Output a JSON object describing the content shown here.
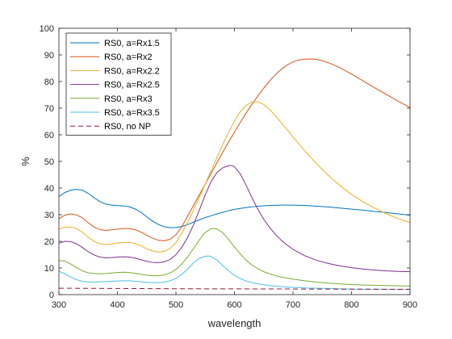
{
  "chart_data": {
    "type": "line",
    "xlabel": "wavelength",
    "ylabel": "%",
    "xlim": [
      300,
      900
    ],
    "ylim": [
      0,
      100
    ],
    "x_ticks": [
      300,
      400,
      500,
      600,
      700,
      800,
      900
    ],
    "y_ticks": [
      0,
      10,
      20,
      30,
      40,
      50,
      60,
      70,
      80,
      90,
      100
    ],
    "grid": false,
    "legend_position": "top-left",
    "series": [
      {
        "name": "RS0, a=Rx1.5",
        "color": "#0072BD",
        "dash": "solid",
        "x": [
          300,
          310,
          320,
          330,
          340,
          350,
          360,
          370,
          380,
          390,
          400,
          410,
          420,
          430,
          440,
          450,
          460,
          470,
          480,
          490,
          500,
          510,
          520,
          530,
          540,
          550,
          560,
          570,
          580,
          590,
          600,
          620,
          640,
          660,
          680,
          700,
          720,
          740,
          760,
          780,
          800,
          820,
          840,
          860,
          880,
          900
        ],
        "values": [
          36.8,
          38.3,
          39.2,
          39.5,
          39.2,
          38.0,
          36.4,
          34.9,
          34.0,
          33.6,
          33.4,
          33.3,
          33.0,
          32.2,
          30.9,
          29.2,
          27.6,
          26.3,
          25.5,
          25.1,
          25.2,
          25.6,
          26.3,
          27.2,
          28.1,
          28.9,
          29.6,
          30.3,
          30.9,
          31.5,
          32.0,
          32.7,
          33.2,
          33.5,
          33.6,
          33.6,
          33.5,
          33.2,
          32.9,
          32.5,
          32.1,
          31.7,
          31.2,
          30.8,
          30.3,
          29.8
        ]
      },
      {
        "name": "RS0, a=Rx2",
        "color": "#D95319",
        "dash": "solid",
        "x": [
          300,
          310,
          320,
          330,
          340,
          350,
          360,
          370,
          380,
          390,
          400,
          410,
          420,
          430,
          440,
          450,
          460,
          470,
          480,
          490,
          500,
          510,
          520,
          530,
          540,
          550,
          560,
          570,
          580,
          590,
          600,
          610,
          620,
          630,
          640,
          650,
          660,
          670,
          680,
          690,
          700,
          710,
          720,
          730,
          740,
          750,
          760,
          770,
          780,
          790,
          800,
          820,
          840,
          860,
          880,
          900
        ],
        "values": [
          28.5,
          29.8,
          30.3,
          29.9,
          28.8,
          27.0,
          25.4,
          24.4,
          24.1,
          24.3,
          24.6,
          24.8,
          24.8,
          24.4,
          23.5,
          22.3,
          21.2,
          20.4,
          20.2,
          20.8,
          22.5,
          25.5,
          29.5,
          33.5,
          37.5,
          41.5,
          45.5,
          49.5,
          53.5,
          57.3,
          61.0,
          64.7,
          68.2,
          71.5,
          74.6,
          77.5,
          80.2,
          82.6,
          84.6,
          86.2,
          87.4,
          88.1,
          88.4,
          88.5,
          88.3,
          87.8,
          87.1,
          86.2,
          85.2,
          84.0,
          82.8,
          80.2,
          77.6,
          75.1,
          72.6,
          70.2
        ]
      },
      {
        "name": "RS0, a=Rx2.2",
        "color": "#EDB120",
        "dash": "solid",
        "x": [
          300,
          310,
          320,
          330,
          340,
          350,
          360,
          370,
          380,
          390,
          400,
          410,
          420,
          430,
          440,
          450,
          460,
          470,
          480,
          490,
          500,
          510,
          520,
          530,
          540,
          550,
          560,
          570,
          580,
          590,
          600,
          610,
          620,
          630,
          640,
          650,
          660,
          670,
          680,
          690,
          700,
          720,
          740,
          760,
          780,
          800,
          820,
          840,
          860,
          880,
          900
        ],
        "values": [
          24.6,
          25.3,
          25.4,
          24.8,
          23.4,
          21.6,
          20.0,
          19.1,
          18.8,
          19.0,
          19.4,
          19.6,
          19.6,
          19.2,
          18.3,
          17.2,
          16.4,
          16.0,
          16.2,
          17.3,
          19.6,
          23.0,
          27.2,
          31.8,
          36.6,
          41.5,
          46.5,
          51.5,
          56.4,
          61.0,
          65.2,
          68.7,
          71.1,
          72.3,
          72.4,
          71.4,
          69.5,
          67.1,
          64.5,
          61.9,
          59.2,
          54.0,
          49.2,
          44.8,
          41.0,
          37.6,
          34.8,
          32.4,
          30.3,
          28.5,
          27.0
        ]
      },
      {
        "name": "RS0, a=Rx2.5",
        "color": "#7E2F8E",
        "dash": "solid",
        "x": [
          300,
          310,
          320,
          330,
          340,
          350,
          360,
          370,
          380,
          390,
          400,
          410,
          420,
          430,
          440,
          450,
          460,
          470,
          480,
          490,
          500,
          510,
          520,
          530,
          540,
          550,
          560,
          570,
          580,
          590,
          595,
          600,
          610,
          620,
          630,
          640,
          650,
          660,
          670,
          680,
          690,
          700,
          720,
          740,
          760,
          780,
          800,
          820,
          840,
          860,
          880,
          900
        ],
        "values": [
          19.3,
          20.0,
          19.9,
          19.1,
          17.7,
          16.1,
          14.9,
          14.1,
          13.8,
          13.9,
          14.1,
          14.2,
          14.1,
          13.7,
          13.1,
          12.5,
          12.1,
          12.0,
          12.3,
          13.2,
          15.0,
          17.8,
          21.5,
          26.2,
          31.8,
          37.4,
          42.4,
          45.8,
          47.6,
          48.4,
          48.5,
          48.0,
          45.3,
          41.0,
          36.3,
          32.0,
          28.3,
          25.2,
          22.6,
          20.4,
          18.6,
          17.0,
          14.6,
          12.9,
          11.7,
          10.8,
          10.1,
          9.6,
          9.2,
          8.9,
          8.7,
          8.6
        ]
      },
      {
        "name": "RS0, a=Rx3",
        "color": "#77AC30",
        "dash": "solid",
        "x": [
          300,
          310,
          320,
          330,
          340,
          350,
          360,
          370,
          380,
          390,
          400,
          410,
          420,
          430,
          440,
          450,
          460,
          470,
          480,
          490,
          500,
          510,
          520,
          530,
          540,
          550,
          560,
          570,
          580,
          590,
          600,
          610,
          620,
          630,
          640,
          650,
          660,
          670,
          680,
          700,
          720,
          740,
          760,
          780,
          800,
          820,
          840,
          860,
          880,
          900
        ],
        "values": [
          12.8,
          12.6,
          11.5,
          10.2,
          8.9,
          8.2,
          7.9,
          7.8,
          7.9,
          8.1,
          8.3,
          8.4,
          8.3,
          8.0,
          7.6,
          7.3,
          7.1,
          7.1,
          7.4,
          8.1,
          9.5,
          11.5,
          14.2,
          17.3,
          20.5,
          23.3,
          24.8,
          24.7,
          23.2,
          20.7,
          17.9,
          15.2,
          12.9,
          11.1,
          9.7,
          8.6,
          7.8,
          7.1,
          6.6,
          5.8,
          5.2,
          4.7,
          4.3,
          4.0,
          3.8,
          3.6,
          3.5,
          3.4,
          3.3,
          3.2
        ]
      },
      {
        "name": "RS0, a=Rx3.5",
        "color": "#4DBEEE",
        "dash": "solid",
        "x": [
          300,
          310,
          320,
          330,
          340,
          350,
          360,
          370,
          380,
          390,
          400,
          410,
          420,
          430,
          440,
          450,
          460,
          470,
          480,
          490,
          500,
          510,
          520,
          530,
          540,
          550,
          556,
          560,
          570,
          580,
          590,
          600,
          610,
          620,
          630,
          640,
          660,
          680,
          700,
          720,
          740,
          760,
          780,
          800,
          820,
          840,
          860,
          880,
          900
        ],
        "values": [
          8.8,
          7.8,
          6.6,
          5.6,
          5.0,
          4.7,
          4.7,
          4.8,
          4.9,
          5.0,
          5.1,
          5.2,
          5.2,
          5.0,
          4.8,
          4.6,
          4.5,
          4.5,
          4.7,
          5.2,
          6.1,
          7.6,
          9.6,
          11.9,
          13.6,
          14.4,
          14.5,
          14.3,
          13.0,
          10.9,
          8.9,
          7.2,
          6.0,
          5.1,
          4.5,
          4.0,
          3.4,
          3.0,
          2.7,
          2.5,
          2.4,
          2.3,
          2.2,
          2.1,
          2.0,
          2.0,
          2.0,
          1.9,
          1.9
        ]
      },
      {
        "name": "RS0, no NP",
        "color": "#A2142F",
        "dash": "dashed",
        "x": [
          300,
          400,
          500,
          600,
          700,
          800,
          900
        ],
        "values": [
          2.4,
          2.3,
          2.2,
          2.15,
          2.1,
          2.05,
          2.0
        ]
      }
    ]
  }
}
